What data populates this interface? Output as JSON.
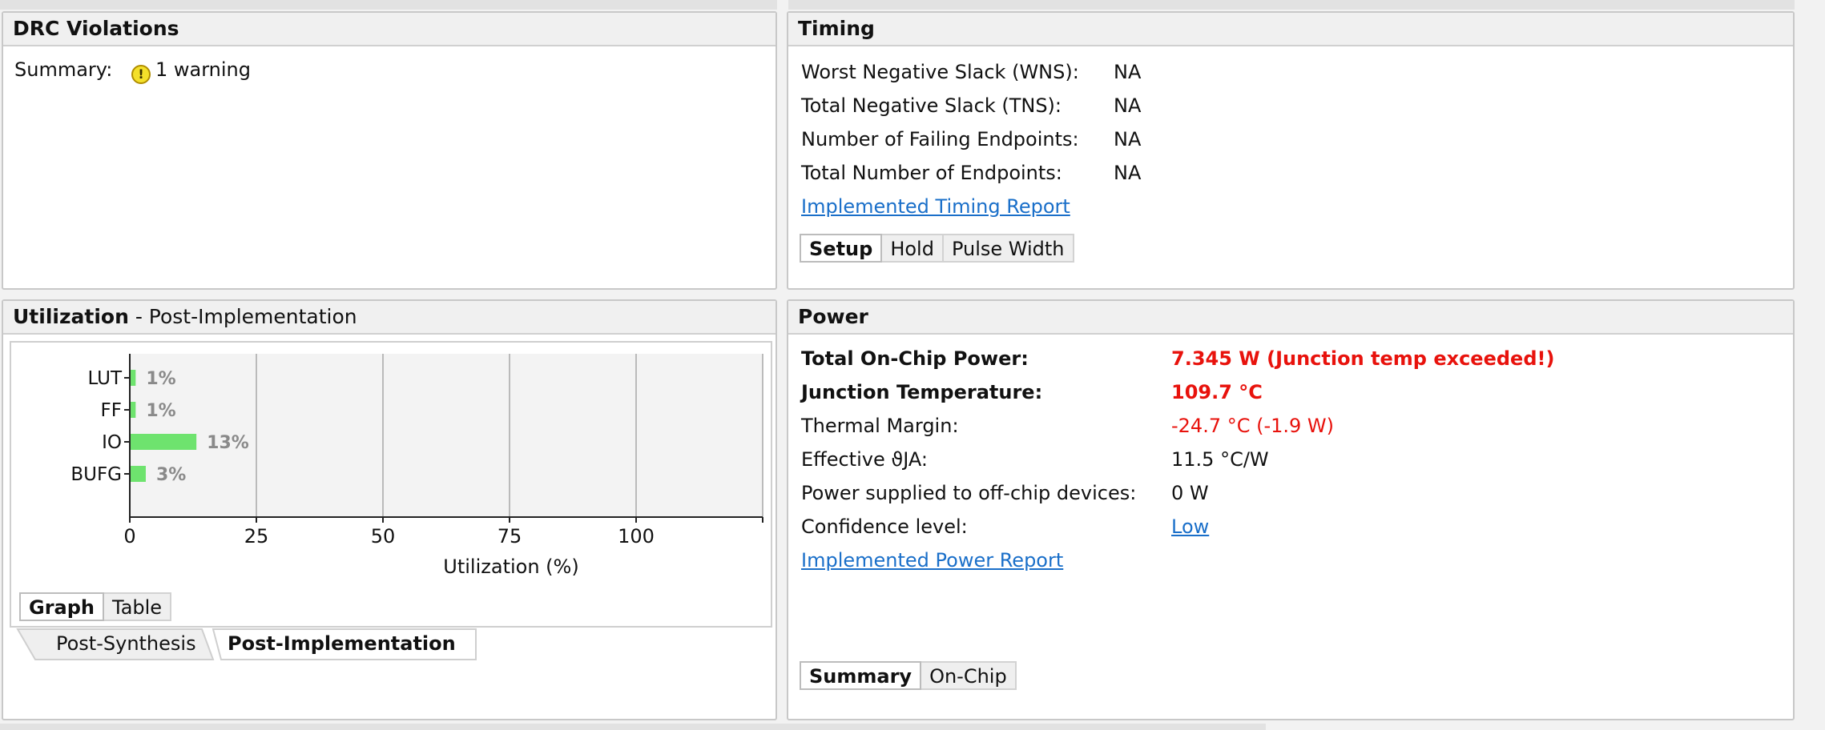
{
  "drc": {
    "title": "DRC Violations",
    "summary_label": "Summary:",
    "summary_icon": "warning-icon",
    "summary_value": "1 warning"
  },
  "timing": {
    "title": "Timing",
    "rows": [
      {
        "label": "Worst Negative Slack (WNS):",
        "value": "NA"
      },
      {
        "label": "Total Negative Slack (TNS):",
        "value": "NA"
      },
      {
        "label": "Number of Failing Endpoints:",
        "value": "NA"
      },
      {
        "label": "Total Number of Endpoints:",
        "value": "NA"
      }
    ],
    "report_link": "Implemented Timing Report",
    "tabs": [
      "Setup",
      "Hold",
      "Pulse Width"
    ],
    "active_tab": "Setup"
  },
  "utilization": {
    "title": "Utilization",
    "subtitle": " - Post-Implementation",
    "view_tabs": [
      "Graph",
      "Table"
    ],
    "active_view": "Graph",
    "stage_tabs": [
      "Post-Synthesis",
      "Post-Implementation"
    ],
    "active_stage": "Post-Implementation"
  },
  "chart_data": {
    "type": "bar",
    "orientation": "horizontal",
    "categories": [
      "LUT",
      "FF",
      "IO",
      "BUFG"
    ],
    "values": [
      1,
      1,
      13,
      3
    ],
    "data_labels": [
      "1%",
      "1%",
      "13%",
      "3%"
    ],
    "xlabel": "Utilization (%)",
    "ylabel": "",
    "xticks": [
      "0",
      "25",
      "50",
      "75",
      "100"
    ],
    "xlim": [
      0,
      125
    ],
    "grid": true,
    "bar_color": "#6ee36e",
    "label_color": "#8a8a8a"
  },
  "power": {
    "title": "Power",
    "rows": [
      {
        "label": "Total On-Chip Power:",
        "value": "7.345 W (Junction temp exceeded!)",
        "style": "redb",
        "label_bold": true
      },
      {
        "label": "Junction Temperature:",
        "value": "109.7 °C",
        "style": "redb",
        "label_bold": true
      },
      {
        "label": "Thermal Margin:",
        "value": "-24.7 °C (-1.9 W)",
        "style": "red",
        "label_bold": false
      },
      {
        "label": "Effective ϑJA:",
        "value": "11.5 °C/W",
        "style": "",
        "label_bold": false
      },
      {
        "label": "Power supplied to off-chip devices:",
        "value": "0 W",
        "style": "",
        "label_bold": false
      },
      {
        "label": "Confidence level:",
        "value": "Low",
        "style": "link",
        "label_bold": false
      }
    ],
    "report_link": "Implemented Power Report",
    "tabs": [
      "Summary",
      "On-Chip"
    ],
    "active_tab": "Summary"
  }
}
